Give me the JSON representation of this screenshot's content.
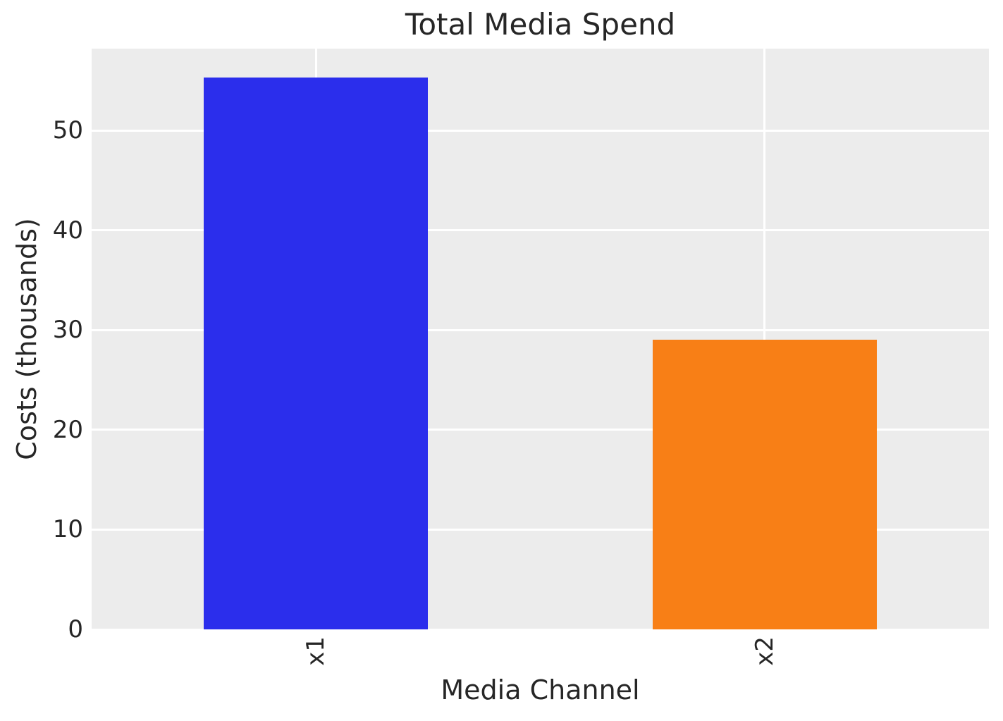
{
  "chart_data": {
    "type": "bar",
    "title": "Total Media Spend",
    "xlabel": "Media Channel",
    "ylabel": "Costs (thousands)",
    "categories": [
      "x1",
      "x2"
    ],
    "values": [
      55.3,
      29.0
    ],
    "bar_colors": [
      "#2b2eec",
      "#f87f16"
    ],
    "yticks": [
      0,
      10,
      20,
      30,
      40,
      50
    ],
    "ylim": [
      0,
      58.2
    ],
    "grid": true,
    "legend": false,
    "xtick_rotation_deg": 90
  },
  "colors": {
    "figure_bg": "#ffffff",
    "plot_bg": "#ececec",
    "grid": "#ffffff",
    "text": "#262626"
  }
}
